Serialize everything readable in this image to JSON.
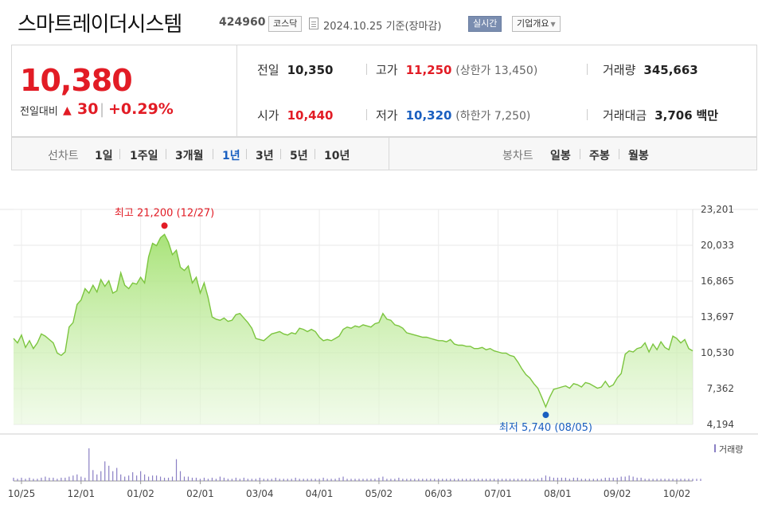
{
  "header": {
    "title": "스마트레이더시스템",
    "code": "424960",
    "market": "코스닥",
    "date": "2024.10.25  기준(장마감)",
    "realtime": "실시간",
    "company_info": "기업개요"
  },
  "quote": {
    "price": "10,380",
    "change_label": "전일대비",
    "change_value": "30",
    "change_pct": "+0.29%",
    "stats": {
      "prev_label": "전일",
      "prev_value": "10,350",
      "high_label": "고가",
      "high_value": "11,250",
      "upper_limit": "(상한가 13,450)",
      "volume_label": "거래량",
      "volume_value": "345,663",
      "open_label": "시가",
      "open_value": "10,440",
      "low_label": "저가",
      "low_value": "10,320",
      "lower_limit": "(하한가 7,250)",
      "amount_label": "거래대금",
      "amount_value": "3,706",
      "amount_unit": "백만"
    }
  },
  "periods": {
    "line_label": "선차트",
    "line_options": [
      "1일",
      "1주일",
      "3개월",
      "1년",
      "3년",
      "5년",
      "10년"
    ],
    "active": "1년",
    "candle_label": "봉차트",
    "candle_options": [
      "일봉",
      "주봉",
      "월봉"
    ]
  },
  "colors": {
    "up": "#e21c25",
    "down": "#1a5fc0",
    "line": "#7cc53f",
    "volume": "#8a7fc4"
  },
  "chart_data": {
    "type": "area",
    "y_ticks": [
      "23,201",
      "20,033",
      "16,865",
      "13,697",
      "10,530",
      "7,362",
      "4,194"
    ],
    "ylim": [
      4194,
      23201
    ],
    "x_ticks": [
      "10/25",
      "12/01",
      "01/02",
      "02/01",
      "03/04",
      "04/01",
      "05/02",
      "06/03",
      "07/01",
      "08/01",
      "09/02",
      "10/02"
    ],
    "max_label": "최고 21,200 (12/27)",
    "min_label": "최저 5,740 (08/05)",
    "volume_label": "거래량",
    "series": [
      {
        "values": [
          11800,
          11400,
          12100,
          11000,
          11600,
          10900,
          11400,
          12200,
          12000,
          11700,
          11400,
          10500,
          10300,
          10600,
          12800,
          13200,
          14800,
          15200,
          16200,
          15800,
          16500,
          15900,
          17000,
          16400,
          16900,
          15800,
          16000,
          17600,
          16500,
          16200,
          16700,
          16600,
          17200,
          16700,
          19000,
          20200,
          20000,
          20700,
          21000,
          20300,
          19200,
          19600,
          18100,
          17800,
          18200,
          16700,
          17200,
          15800,
          16700,
          15400,
          13700,
          13500,
          13400,
          13600,
          13300,
          13400,
          13900,
          14000,
          13600,
          13200,
          12700,
          11800,
          11700,
          11600,
          11900,
          12200,
          12300,
          12400,
          12200,
          12100,
          12300,
          12200,
          12700,
          12600,
          12400,
          12600,
          12400,
          11900,
          11600,
          11700,
          11600,
          11800,
          12000,
          12600,
          12800,
          12700,
          12900,
          12800,
          13000,
          12900,
          12800,
          13100,
          13200,
          14000,
          13500,
          13400,
          13000,
          12900,
          12700,
          12300,
          12200,
          12100,
          12000,
          11900,
          11900,
          11800,
          11700,
          11600,
          11600,
          11500,
          11700,
          11300,
          11200,
          11200,
          11100,
          11100,
          10900,
          10900,
          11000,
          10800,
          10900,
          10700,
          10600,
          10500,
          10500,
          10300,
          10200,
          9700,
          9100,
          8600,
          8300,
          7800,
          7400,
          6600,
          5740,
          6600,
          7300,
          7400,
          7500,
          7600,
          7400,
          7800,
          7700,
          7500,
          7900,
          7800,
          7600,
          7400,
          7500,
          8000,
          7500,
          7700,
          8300,
          8700,
          10400,
          10700,
          10600,
          10900,
          11000,
          11400,
          10600,
          11300,
          10800,
          11500,
          11000,
          10800,
          12000,
          11800,
          11400,
          11700,
          10900,
          10700
        ],
        "max": 21200,
        "max_index": 38,
        "min": 5740,
        "min_index": 134
      }
    ],
    "volume": [
      3,
      2,
      3,
      2,
      3,
      2,
      2,
      3,
      4,
      3,
      3,
      2,
      3,
      3,
      4,
      5,
      6,
      4,
      3,
      30,
      10,
      6,
      9,
      18,
      14,
      9,
      12,
      6,
      4,
      5,
      8,
      5,
      9,
      6,
      4,
      5,
      5,
      4,
      3,
      3,
      4,
      20,
      9,
      4,
      4,
      3,
      3,
      2,
      3,
      2,
      3,
      2,
      4,
      3,
      2,
      2,
      3,
      2,
      3,
      2,
      2,
      2,
      3,
      2,
      2,
      2,
      3,
      2,
      2,
      2,
      2,
      3,
      2,
      2,
      2,
      2,
      2,
      2,
      3,
      2,
      2,
      2,
      3,
      4,
      2,
      2,
      2,
      2,
      2,
      2,
      2,
      2,
      3,
      4,
      2,
      2,
      2,
      3,
      2,
      2,
      2,
      2,
      2,
      2,
      2,
      2,
      2,
      2,
      2,
      2,
      2,
      2,
      2,
      2,
      2,
      2,
      2,
      2,
      2,
      2,
      2,
      2,
      2,
      2,
      2,
      2,
      2,
      2,
      2,
      2,
      2,
      2,
      2,
      3,
      5,
      4,
      3,
      3,
      3,
      3,
      2,
      3,
      3,
      2,
      2,
      2,
      2,
      2,
      2,
      3,
      3,
      3,
      3,
      4,
      4,
      5,
      4,
      3,
      3,
      2,
      2,
      2,
      2,
      2,
      2,
      2,
      2,
      2,
      2,
      2,
      2,
      2,
      2,
      2
    ]
  }
}
